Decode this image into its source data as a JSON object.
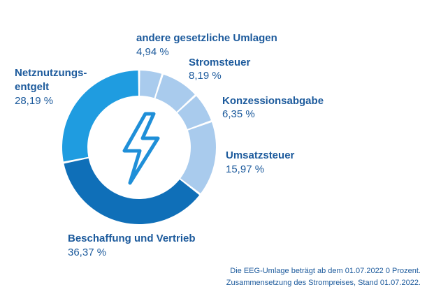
{
  "chart_data": {
    "type": "pie",
    "variant": "donut",
    "categories": [
      "andere gesetzliche Umlagen",
      "Stromsteuer",
      "Konzessionsabgabe",
      "Umsatzsteuer",
      "Beschaffung und Vertrieb",
      "Netznutzungs-entgelt"
    ],
    "values": [
      4.94,
      8.19,
      6.35,
      15.97,
      36.37,
      28.19
    ],
    "value_labels": [
      "4,94 %",
      "8,19 %",
      "6,35 %",
      "15,97 %",
      "36,37 %",
      "28,19 %"
    ],
    "name_lines": [
      [
        "andere gesetzliche Umlagen"
      ],
      [
        "Stromsteuer"
      ],
      [
        "Konzessionsabgabe"
      ],
      [
        "Umsatzsteuer"
      ],
      [
        "Beschaffung  und Vertrieb"
      ],
      [
        "Netznutzungs-",
        "entgelt"
      ]
    ],
    "colors": [
      "#a9cbed",
      "#a9cbed",
      "#a9cbed",
      "#a9cbed",
      "#0f6fb8",
      "#1f9ce0"
    ],
    "center_icon": "lightning-bolt-icon",
    "icon_color": "#1f8fd8",
    "title": "",
    "footnotes": [
      "Die EEG-Umlage beträgt ab dem 01.07.2022 0 Prozent.",
      "Zusammensetzung des Strompreises, Stand 01.07.2022."
    ]
  }
}
